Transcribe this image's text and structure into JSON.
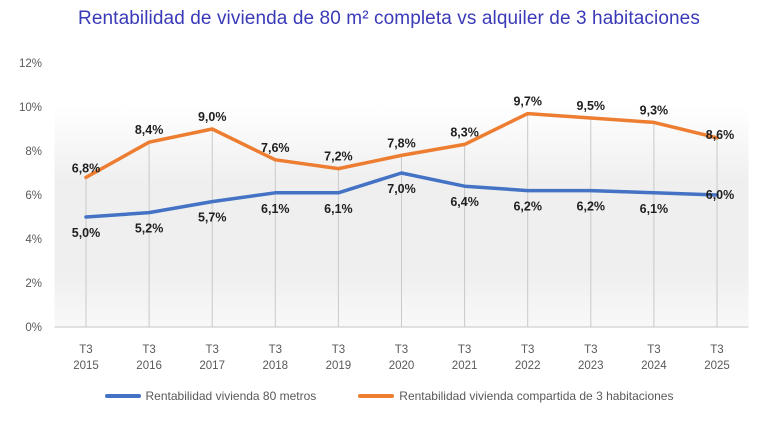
{
  "chart_data": {
    "type": "line",
    "title": "Rentabilidad de vivienda de 80 m² completa vs alquiler de 3 habitaciones",
    "categories": [
      "T3 2015",
      "T3 2016",
      "T3 2017",
      "T3 2018",
      "T3 2019",
      "T3 2020",
      "T3 2021",
      "T3 2022",
      "T3 2023",
      "T3 2024",
      "T3 2025"
    ],
    "x_ticks": [
      {
        "q": "T3",
        "year": "2015"
      },
      {
        "q": "T3",
        "year": "2016"
      },
      {
        "q": "T3",
        "year": "2017"
      },
      {
        "q": "T3",
        "year": "2018"
      },
      {
        "q": "T3",
        "year": "2019"
      },
      {
        "q": "T3",
        "year": "2020"
      },
      {
        "q": "T3",
        "year": "2021"
      },
      {
        "q": "T3",
        "year": "2022"
      },
      {
        "q": "T3",
        "year": "2023"
      },
      {
        "q": "T3",
        "year": "2024"
      },
      {
        "q": "T3",
        "year": "2025"
      }
    ],
    "y_axis": {
      "min": 0,
      "max": 12,
      "step": 2,
      "tick_labels": [
        "0%",
        "2%",
        "4%",
        "6%",
        "8%",
        "10%",
        "12%"
      ]
    },
    "grid": "vertical-drop-lines",
    "legend_position": "bottom",
    "series": [
      {
        "name": "Rentabilidad vivienda 80 metros",
        "color": "#4472C4",
        "values": [
          5.0,
          5.2,
          5.7,
          6.1,
          6.1,
          7.0,
          6.4,
          6.2,
          6.2,
          6.1,
          6.0
        ],
        "labels": [
          "5,0%",
          "5,2%",
          "5,7%",
          "6,1%",
          "6,1%",
          "7,0%",
          "6,4%",
          "6,2%",
          "6,2%",
          "6,1%",
          "6,0%"
        ]
      },
      {
        "name": "Rentabilidad vivienda compartida de 3 habitaciones",
        "color": "#ED7D31",
        "values": [
          6.8,
          8.4,
          9.0,
          7.6,
          7.2,
          7.8,
          8.3,
          9.7,
          9.5,
          9.3,
          8.6
        ],
        "labels": [
          "6,8%",
          "8,4%",
          "9,0%",
          "7,6%",
          "7,2%",
          "7,8%",
          "8,3%",
          "9,7%",
          "9,5%",
          "9,3%",
          "8,6%"
        ]
      }
    ],
    "colors": {
      "title": "#3a3ab8",
      "axis_text": "#595959",
      "data_label": "#1f1f1f",
      "drop_line": "#c9c9c9",
      "axis_line": "#c6c6c6",
      "plot_fill_top": "#ffffff",
      "plot_fill_mid": "#efefef",
      "plot_fill_bottom": "#f8f8f8"
    }
  }
}
